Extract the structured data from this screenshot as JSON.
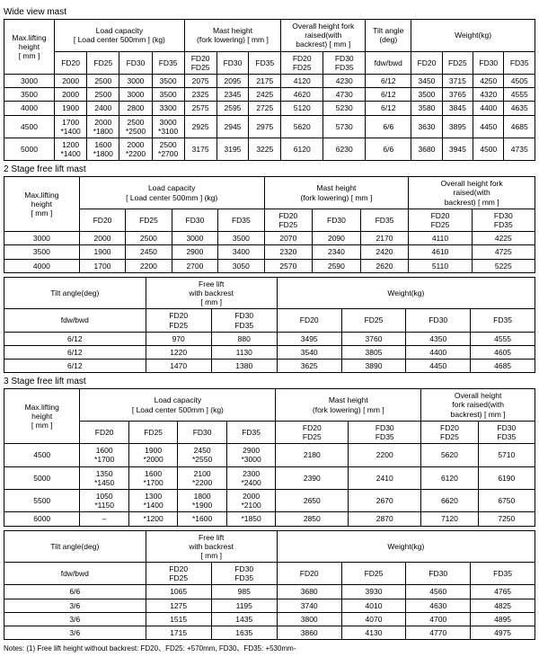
{
  "section1": {
    "title": "Wide view mast",
    "headers": {
      "h_maxlift": "Max.lifting\nheight\n[ mm ]",
      "h_loadcap": "Load capacity\n[ Load center 500mm ] (kg)",
      "h_mastheight": "Mast height\n(fork lowering) [ mm ]",
      "h_overall": "Overall height fork\nraised(with\nbackrest) [ mm ]",
      "h_tilt": "Tilt angle\n(deg)",
      "h_weight": "Weight(kg)",
      "fd20": "FD20",
      "fd25": "FD25",
      "fd30": "FD30",
      "fd35": "FD35",
      "fd20_25": "FD20\nFD25",
      "fd30_35": "FD30\nFD35",
      "fdwbwd": "fdw/bwd"
    },
    "rows": [
      [
        "3000",
        "2000",
        "2500",
        "3000",
        "3500",
        "2075",
        "2095",
        "2175",
        "4120",
        "4230",
        "6/12",
        "3450",
        "3715",
        "4250",
        "4505"
      ],
      [
        "3500",
        "2000",
        "2500",
        "3000",
        "3500",
        "2325",
        "2345",
        "2425",
        "4620",
        "4730",
        "6/12",
        "3500",
        "3765",
        "4320",
        "4555"
      ],
      [
        "4000",
        "1900",
        "2400",
        "2800",
        "3300",
        "2575",
        "2595",
        "2725",
        "5120",
        "5230",
        "6/12",
        "3580",
        "3845",
        "4400",
        "4635"
      ],
      [
        "4500",
        "1700\n*1400",
        "2000\n*1800",
        "2500\n*2500",
        "3000\n*3100",
        "2925",
        "2945",
        "2975",
        "5620",
        "5730",
        "6/6",
        "3630",
        "3895",
        "4450",
        "4685"
      ],
      [
        "5000",
        "1200\n*1400",
        "1600\n*1800",
        "2000\n*2200",
        "2500\n*2700",
        "3175",
        "3195",
        "3225",
        "6120",
        "6230",
        "6/6",
        "3680",
        "3945",
        "4500",
        "4735"
      ]
    ]
  },
  "section2a": {
    "title": "2 Stage free lift mast",
    "headers": {
      "h_maxlift": "Max.lifting\nheight\n[ mm ]",
      "h_loadcap": "Load capacity\n[ Load center 500mm ] (kg)",
      "h_mastheight": "Mast height\n(fork lowering) [ mm ]",
      "h_overall": "Overall height fork\nraised(with\nbackrest) [ mm ]",
      "fd20": "FD20",
      "fd25": "FD25",
      "fd30": "FD30",
      "fd35": "FD35",
      "fd20_25": "FD20\nFD25",
      "fd30_35": "FD30\nFD35"
    },
    "rows": [
      [
        "3000",
        "2000",
        "2500",
        "3000",
        "3500",
        "2070",
        "2090",
        "2170",
        "4110",
        "4225"
      ],
      [
        "3500",
        "1900",
        "2450",
        "2900",
        "3400",
        "2320",
        "2340",
        "2420",
        "4610",
        "4725"
      ],
      [
        "4000",
        "1700",
        "2200",
        "2700",
        "3050",
        "2570",
        "2590",
        "2620",
        "5110",
        "5225"
      ]
    ]
  },
  "section2b": {
    "headers": {
      "h_tilt": "Tilt angle(deg)",
      "h_freelift": "Free lift\nwith backrest\n[ mm ]",
      "h_weight": "Weight(kg)",
      "fdwbwd": "fdw/bwd",
      "fd20_25": "FD20\nFD25",
      "fd30_35": "FD30\nFD35",
      "fd20": "FD20",
      "fd25": "FD25",
      "fd30": "FD30",
      "fd35": "FD35"
    },
    "rows": [
      [
        "6/12",
        "970",
        "880",
        "3495",
        "3760",
        "4350",
        "4555"
      ],
      [
        "6/12",
        "1220",
        "1130",
        "3540",
        "3805",
        "4400",
        "4605"
      ],
      [
        "6/12",
        "1470",
        "1380",
        "3625",
        "3890",
        "4450",
        "4685"
      ]
    ]
  },
  "section3a": {
    "title": "3 Stage free lift mast",
    "headers": {
      "h_maxlift": "Max.lifting\nheight\n[ mm ]",
      "h_loadcap": "Load capacity\n[ Load center 500mm ] (kg)",
      "h_mastheight": "Mast height\n(fork lowering) [ mm ]",
      "h_overall": "Overall height\nfork raised(with\nbackrest) [ mm ]",
      "fd20": "FD20",
      "fd25": "FD25",
      "fd30": "FD30",
      "fd35": "FD35",
      "fd20_25": "FD20\nFD25",
      "fd30_35": "FD30\nFD35"
    },
    "rows": [
      [
        "4500",
        "1600\n*1700",
        "1900\n*2000",
        "2450\n*2550",
        "2900\n*3000",
        "2180",
        "2200",
        "5620",
        "5710"
      ],
      [
        "5000",
        "1350\n*1450",
        "1600\n*1700",
        "2100\n*2200",
        "2300\n*2400",
        "2390",
        "2410",
        "6120",
        "6190"
      ],
      [
        "5500",
        "1050\n*1150",
        "1300\n*1400",
        "1800\n*1900",
        "2000\n*2100",
        "2650",
        "2670",
        "6620",
        "6750"
      ],
      [
        "6000",
        "–",
        "*1200",
        "*1600",
        "*1850",
        "2850",
        "2870",
        "7120",
        "7250"
      ]
    ]
  },
  "section3b": {
    "headers": {
      "h_tilt": "Tilt angle(deg)",
      "h_freelift": "Free lift\nwith backrest\n[ mm ]",
      "h_weight": "Weight(kg)",
      "fdwbwd": "fdw/bwd",
      "fd20_25": "FD20\nFD25",
      "fd30_35": "FD30\nFD35",
      "fd20": "FD20",
      "fd25": "FD25",
      "fd30": "FD30",
      "fd35": "FD35"
    },
    "rows": [
      [
        "6/6",
        "1065",
        "985",
        "3680",
        "3930",
        "4560",
        "4765"
      ],
      [
        "3/6",
        "1275",
        "1195",
        "3740",
        "4010",
        "4630",
        "4825"
      ],
      [
        "3/6",
        "1515",
        "1435",
        "3800",
        "4070",
        "4700",
        "4895"
      ],
      [
        "3/6",
        "1715",
        "1635",
        "3860",
        "4130",
        "4770",
        "4975"
      ]
    ]
  },
  "notes": "Notes: (1)  Free lift height without backrest:   FD20、FD25: +570mm,   FD30、FD35: +530mm-"
}
